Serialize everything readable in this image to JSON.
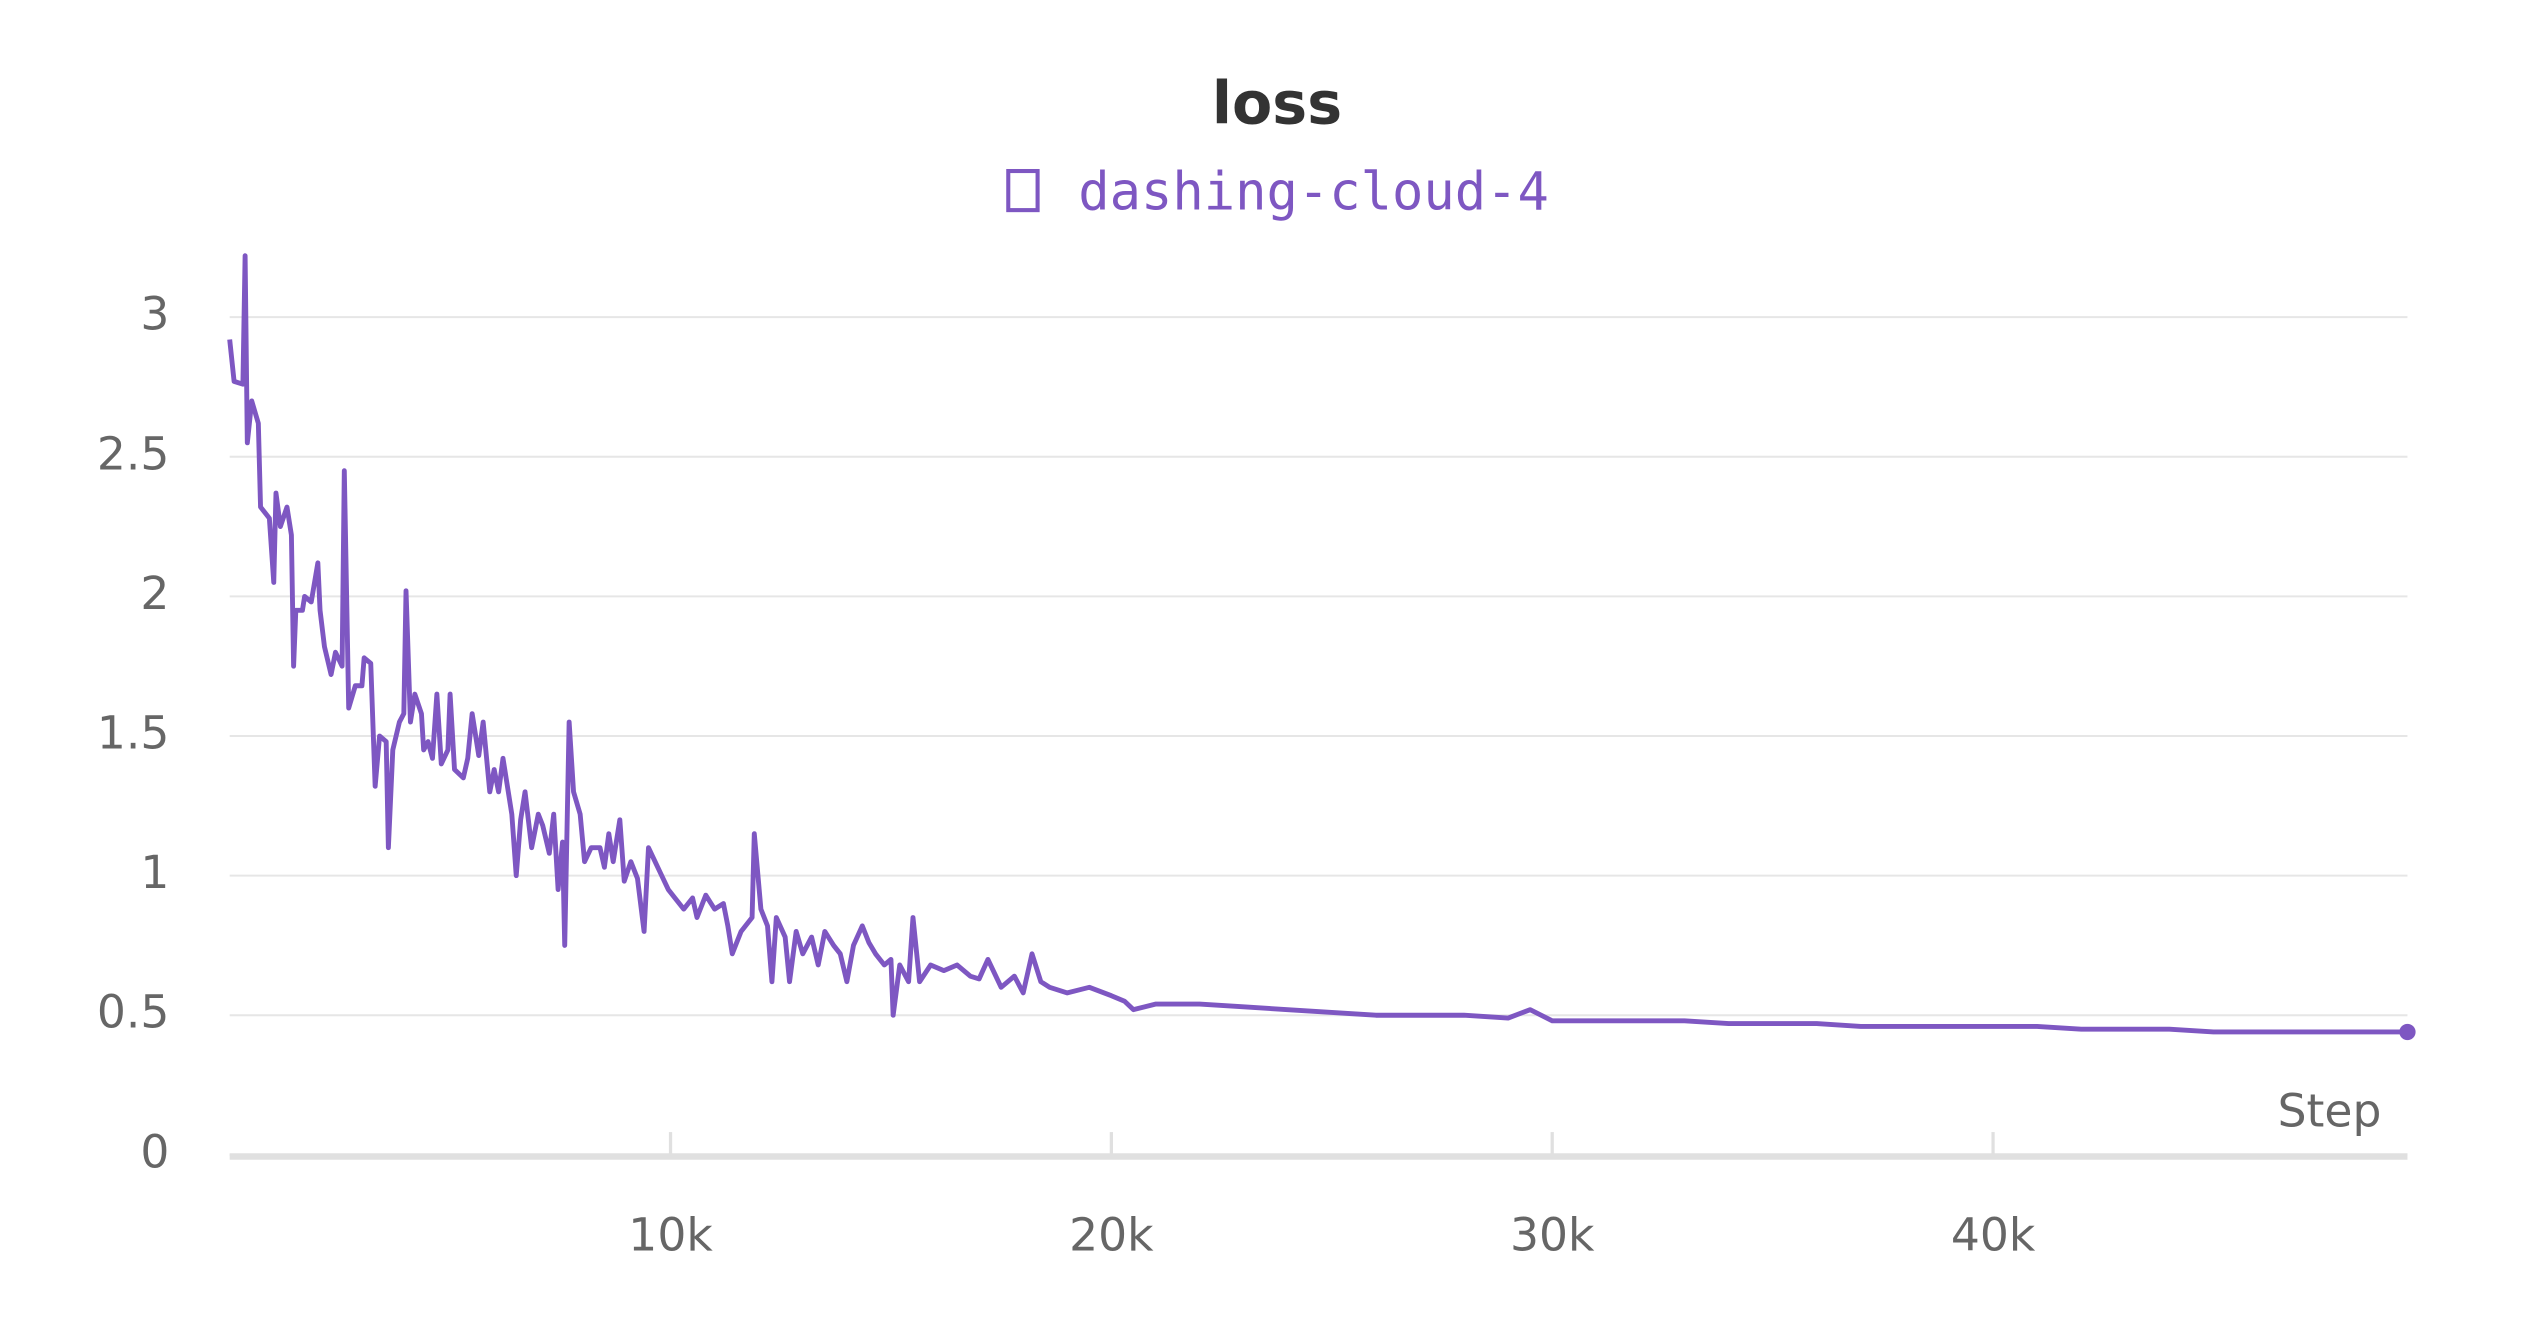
{
  "chart_data": {
    "type": "line",
    "title": "loss",
    "xlabel": "Step",
    "series": [
      {
        "name": "dashing-cloud-4",
        "color": "#7e57c2",
        "x": [
          0,
          100,
          300,
          350,
          400,
          500,
          650,
          700,
          900,
          1000,
          1050,
          1150,
          1300,
          1400,
          1450,
          1500,
          1650,
          1700,
          1850,
          2000,
          2050,
          2150,
          2300,
          2400,
          2550,
          2600,
          2700,
          2850,
          3000,
          3050,
          3200,
          3300,
          3400,
          3550,
          3600,
          3700,
          3850,
          3950,
          4000,
          4100,
          4200,
          4350,
          4400,
          4500,
          4600,
          4700,
          4800,
          4950,
          5000,
          5100,
          5300,
          5400,
          5500,
          5650,
          5750,
          5900,
          6000,
          6100,
          6200,
          6400,
          6500,
          6600,
          6700,
          6850,
          7000,
          7100,
          7250,
          7350,
          7450,
          7550,
          7600,
          7700,
          7800,
          7950,
          8050,
          8200,
          8400,
          8500,
          8600,
          8700,
          8850,
          8950,
          9100,
          9250,
          9400,
          9500,
          9650,
          9800,
          9950,
          10100,
          10300,
          10500,
          10600,
          10800,
          11000,
          11200,
          11300,
          11400,
          11600,
          11850,
          11900,
          12050,
          12200,
          12300,
          12400,
          12600,
          12700,
          12850,
          13000,
          13200,
          13350,
          13500,
          13700,
          13850,
          14000,
          14150,
          14350,
          14500,
          14650,
          14850,
          15000,
          15050,
          15200,
          15400,
          15500,
          15650,
          15900,
          16200,
          16500,
          16800,
          17000,
          17200,
          17500,
          17800,
          18000,
          18200,
          18400,
          18600,
          19000,
          19500,
          20000,
          20300,
          20500,
          21000,
          22000,
          23000,
          24000,
          25000,
          26000,
          27000,
          28000,
          29000,
          29500,
          30000,
          31000,
          32000,
          33000,
          34000,
          35000,
          36000,
          37000,
          38000,
          39000,
          40000,
          41000,
          42000,
          43000,
          44000,
          45000,
          46000,
          47000,
          48000,
          49400
        ],
        "values": [
          2.92,
          2.77,
          2.76,
          3.22,
          2.55,
          2.7,
          2.62,
          2.32,
          2.28,
          2.05,
          2.37,
          2.25,
          2.32,
          2.22,
          1.75,
          1.95,
          1.95,
          2.0,
          1.98,
          2.12,
          1.95,
          1.82,
          1.72,
          1.8,
          1.75,
          2.45,
          1.6,
          1.68,
          1.68,
          1.78,
          1.76,
          1.32,
          1.5,
          1.48,
          1.1,
          1.45,
          1.55,
          1.58,
          2.02,
          1.55,
          1.65,
          1.58,
          1.45,
          1.48,
          1.42,
          1.65,
          1.4,
          1.45,
          1.65,
          1.38,
          1.35,
          1.42,
          1.58,
          1.43,
          1.55,
          1.3,
          1.38,
          1.3,
          1.42,
          1.22,
          1.0,
          1.2,
          1.3,
          1.1,
          1.22,
          1.18,
          1.08,
          1.22,
          0.95,
          1.12,
          0.75,
          1.55,
          1.3,
          1.22,
          1.05,
          1.1,
          1.1,
          1.03,
          1.15,
          1.05,
          1.2,
          0.98,
          1.05,
          0.99,
          0.8,
          1.1,
          1.05,
          1.0,
          0.95,
          0.92,
          0.88,
          0.92,
          0.85,
          0.93,
          0.88,
          0.9,
          0.82,
          0.72,
          0.8,
          0.85,
          1.15,
          0.88,
          0.82,
          0.62,
          0.85,
          0.78,
          0.62,
          0.8,
          0.72,
          0.78,
          0.68,
          0.8,
          0.75,
          0.72,
          0.62,
          0.75,
          0.82,
          0.76,
          0.72,
          0.68,
          0.7,
          0.5,
          0.68,
          0.62,
          0.85,
          0.62,
          0.68,
          0.66,
          0.68,
          0.64,
          0.63,
          0.7,
          0.6,
          0.64,
          0.58,
          0.72,
          0.62,
          0.6,
          0.58,
          0.6,
          0.57,
          0.55,
          0.52,
          0.54,
          0.54,
          0.53,
          0.52,
          0.51,
          0.5,
          0.5,
          0.5,
          0.49,
          0.52,
          0.48,
          0.48,
          0.48,
          0.48,
          0.47,
          0.47,
          0.47,
          0.46,
          0.46,
          0.46,
          0.46,
          0.46,
          0.45,
          0.45,
          0.45,
          0.44,
          0.44,
          0.44,
          0.44,
          0.44
        ]
      }
    ],
    "xlim": [
      0,
      49400
    ],
    "ylim": [
      0,
      3.22
    ],
    "xticks": [
      {
        "value": 10000,
        "label": "10k"
      },
      {
        "value": 20000,
        "label": "20k"
      },
      {
        "value": 30000,
        "label": "30k"
      },
      {
        "value": 40000,
        "label": "40k"
      }
    ],
    "yticks": [
      0,
      0.5,
      1,
      1.5,
      2,
      2.5,
      3
    ],
    "grid": true
  }
}
